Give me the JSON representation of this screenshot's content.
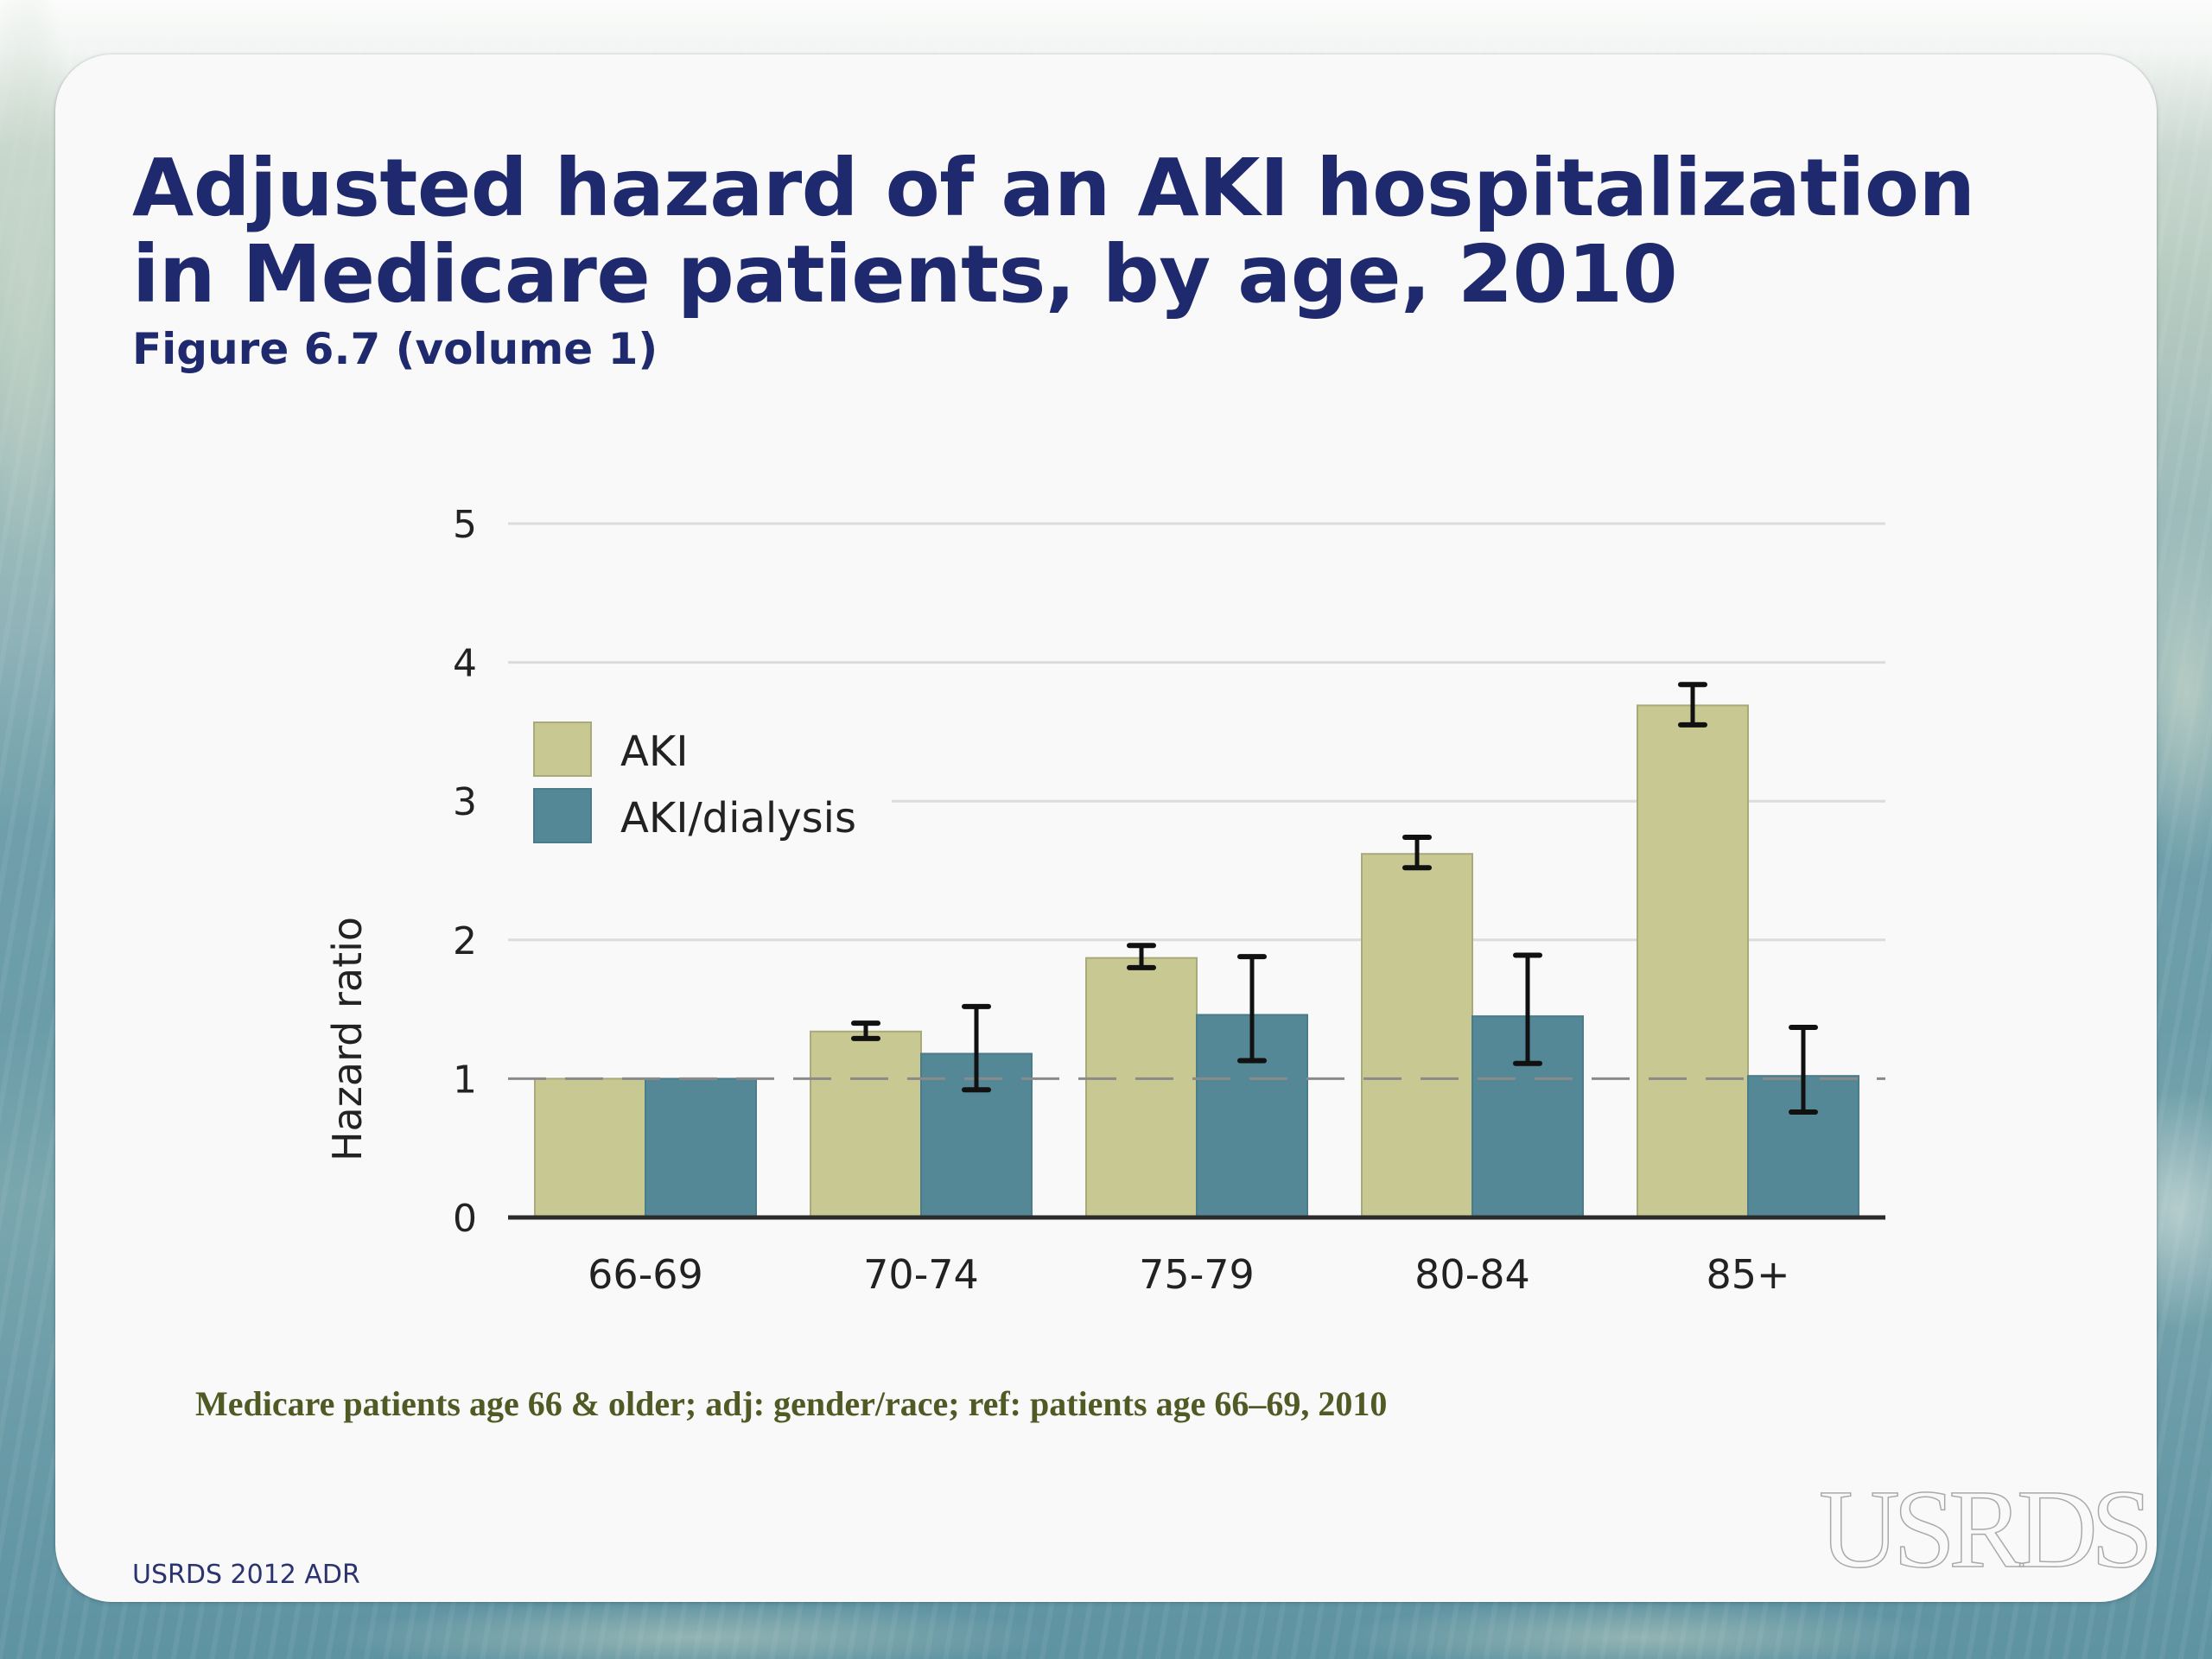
{
  "slide": {
    "title_line1": "Adjusted hazard of an AKI hospitalization",
    "title_line2": "in Medicare patients, by age, 2010",
    "subtitle": "Figure 6.7 (volume 1)",
    "note": "Medicare patients age 66 & older; adj: gender/race; ref: patients age 66–69, 2010",
    "source": "USRDS 2012 ADR",
    "logo_text": "USRDS"
  },
  "colors": {
    "title": "#1f2a6e",
    "note": "#4f5a25",
    "aki": "#c8c892",
    "aki_dialysis": "#548896",
    "error_bar": "#111111",
    "reference_line": "#8a8a8a",
    "gridline": "#dcdcdc"
  },
  "chart_data": {
    "type": "bar",
    "title": "Adjusted hazard of an AKI hospitalization in Medicare patients, by age, 2010",
    "xlabel": "",
    "ylabel": "Hazard ratio",
    "categories": [
      "66-69",
      "70-74",
      "75-79",
      "80-84",
      "85+"
    ],
    "series": [
      {
        "name": "AKI",
        "values": [
          1.0,
          1.34,
          1.87,
          2.62,
          3.69
        ],
        "ci_lower": [
          null,
          1.29,
          1.8,
          2.52,
          3.55
        ],
        "ci_upper": [
          null,
          1.4,
          1.96,
          2.74,
          3.84
        ]
      },
      {
        "name": "AKI/dialysis",
        "values": [
          1.0,
          1.18,
          1.46,
          1.45,
          1.02
        ],
        "ci_lower": [
          null,
          0.92,
          1.13,
          1.11,
          0.76
        ],
        "ci_upper": [
          null,
          1.52,
          1.88,
          1.89,
          1.37
        ]
      }
    ],
    "yticks": [
      0,
      1,
      2,
      3,
      4,
      5
    ],
    "ylim": [
      0,
      5
    ],
    "reference_line": 1,
    "grid": true,
    "legend_position": "upper-left"
  }
}
